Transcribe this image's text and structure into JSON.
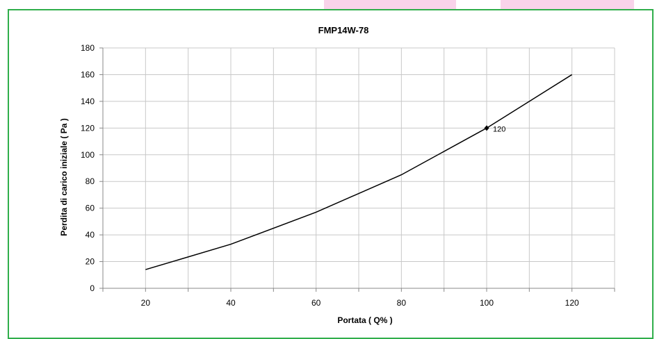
{
  "colors": {
    "frame_border": "#2fae4a",
    "pink_tab": "#f9d3ea",
    "grid": "#c8c8c8",
    "axis": "#888888",
    "line": "#000000",
    "text": "#000000"
  },
  "chart_data": {
    "type": "line",
    "title": "FMP14W-78",
    "xlabel": "Portata ( Q% )",
    "ylabel": "Perdita di carico iniziale ( Pa )",
    "xlim": [
      10,
      130
    ],
    "ylim": [
      0,
      180
    ],
    "x_ticks": [
      20,
      40,
      60,
      80,
      100,
      120
    ],
    "y_ticks": [
      0,
      20,
      40,
      60,
      80,
      100,
      120,
      140,
      160,
      180
    ],
    "grid": true,
    "x": [
      20,
      40,
      60,
      80,
      100,
      120
    ],
    "series": [
      {
        "values": [
          14,
          33,
          57,
          85,
          120,
          160
        ]
      }
    ],
    "annotations": [
      {
        "x": 100,
        "y": 120,
        "text": "120"
      }
    ]
  }
}
